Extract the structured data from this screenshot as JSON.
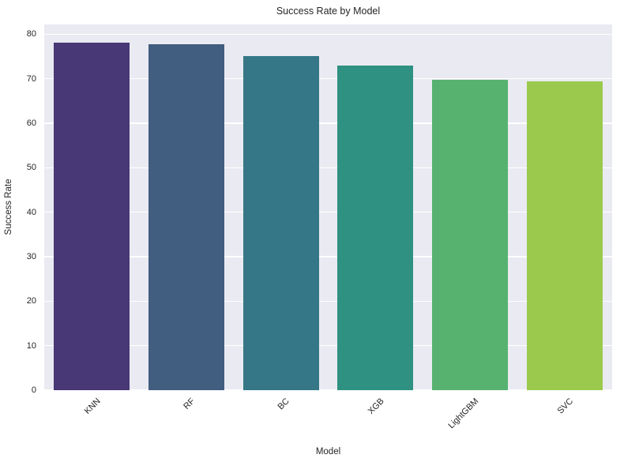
{
  "chart_data": {
    "type": "bar",
    "title": "Success Rate by Model",
    "xlabel": "Model",
    "ylabel": "Success Rate",
    "categories": [
      "KNN",
      "RF",
      "BC",
      "XGB",
      "LightGBM",
      "SVC"
    ],
    "values": [
      78.2,
      77.7,
      75.1,
      72.9,
      69.8,
      69.4
    ],
    "bar_colors": [
      "#483876",
      "#415d80",
      "#357786",
      "#2e9181",
      "#57b270",
      "#9ac94e"
    ],
    "ylim": [
      0,
      82.2
    ],
    "yticks": [
      0,
      10,
      20,
      30,
      40,
      50,
      60,
      70,
      80
    ],
    "grid": true,
    "grid_color": "#ffffff",
    "plot_background": "#eaeaf2",
    "figure_background": "#ffffff",
    "text_color": "#262626",
    "xtick_rotation_deg": 45,
    "legend_position": "none",
    "bar_width_fraction": 0.8
  }
}
